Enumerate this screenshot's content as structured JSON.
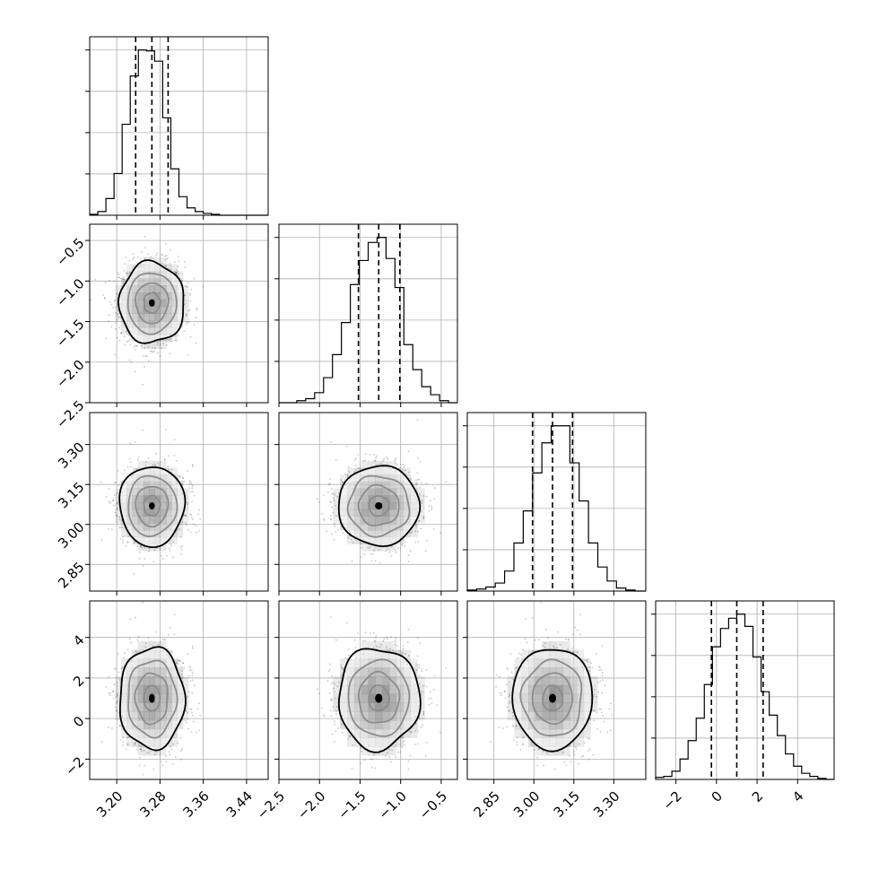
{
  "chart_data": {
    "type": "corner",
    "grid": true,
    "parameters": [
      {
        "index": 0,
        "range": [
          3.15,
          3.48
        ],
        "ticks": [
          {
            "value": 3.2,
            "label": "3.20"
          },
          {
            "value": 3.28,
            "label": "3.28"
          },
          {
            "value": 3.36,
            "label": "3.36"
          },
          {
            "value": 3.44,
            "label": "3.44"
          }
        ],
        "quantiles": [
          3.235,
          3.265,
          3.295
        ],
        "mean": 3.265,
        "sd": 0.03
      },
      {
        "index": 1,
        "range": [
          -2.5,
          -0.3
        ],
        "ticks": [
          {
            "value": -2.5,
            "label": "−2.5"
          },
          {
            "value": -2.0,
            "label": "−2.0"
          },
          {
            "value": -1.5,
            "label": "−1.5"
          },
          {
            "value": -1.0,
            "label": "−1.0"
          },
          {
            "value": -0.5,
            "label": "−0.5"
          }
        ],
        "quantiles": [
          -1.52,
          -1.27,
          -1.01
        ],
        "mean": -1.27,
        "sd": 0.25
      },
      {
        "index": 2,
        "range": [
          2.75,
          3.42
        ],
        "ticks": [
          {
            "value": 2.85,
            "label": "2.85"
          },
          {
            "value": 3.0,
            "label": "3.00"
          },
          {
            "value": 3.15,
            "label": "3.15"
          },
          {
            "value": 3.3,
            "label": "3.30"
          }
        ],
        "quantiles": [
          2.995,
          3.07,
          3.145
        ],
        "mean": 3.07,
        "sd": 0.075
      },
      {
        "index": 3,
        "range": [
          -3.0,
          5.8
        ],
        "ticks": [
          {
            "value": -2,
            "label": "−2"
          },
          {
            "value": 0,
            "label": "0"
          },
          {
            "value": 2,
            "label": "2"
          },
          {
            "value": 4,
            "label": "4"
          }
        ],
        "quantiles": [
          -0.25,
          1.0,
          2.3
        ],
        "mean": 1.0,
        "sd": 1.25
      }
    ],
    "histograms": [
      {
        "param": 0,
        "bin_edges": [
          3.15,
          3.165,
          3.18,
          3.195,
          3.21,
          3.225,
          3.24,
          3.255,
          3.27,
          3.285,
          3.3,
          3.315,
          3.33,
          3.345,
          3.36,
          3.375,
          3.39,
          3.405,
          3.42,
          3.435,
          3.45,
          3.465,
          3.48
        ],
        "counts": [
          1,
          4,
          18,
          45,
          98,
          150,
          178,
          177,
          166,
          105,
          50,
          20,
          8,
          4,
          2,
          1,
          0,
          0,
          0,
          0,
          0,
          0
        ]
      },
      {
        "param": 1,
        "bin_edges": [
          -2.5,
          -2.39,
          -2.28,
          -2.17,
          -2.06,
          -1.95,
          -1.84,
          -1.73,
          -1.62,
          -1.51,
          -1.4,
          -1.29,
          -1.18,
          -1.07,
          -0.96,
          -0.85,
          -0.74,
          -0.63,
          -0.52,
          -0.41,
          -0.3
        ],
        "counts": [
          0,
          0,
          2,
          4,
          10,
          25,
          48,
          80,
          118,
          142,
          160,
          165,
          144,
          115,
          58,
          33,
          16,
          8,
          2,
          0
        ]
      },
      {
        "param": 2,
        "bin_edges": [
          2.75,
          2.785,
          2.82,
          2.855,
          2.89,
          2.925,
          2.96,
          2.995,
          3.03,
          3.065,
          3.1,
          3.135,
          3.17,
          3.205,
          3.24,
          3.275,
          3.31,
          3.345,
          3.38,
          3.42
        ],
        "counts": [
          1,
          2,
          4,
          8,
          20,
          48,
          80,
          118,
          148,
          165,
          165,
          128,
          90,
          48,
          24,
          10,
          3,
          1,
          0
        ]
      },
      {
        "param": 3,
        "bin_edges": [
          -3.0,
          -2.6,
          -2.2,
          -1.8,
          -1.4,
          -1.0,
          -0.6,
          -0.2,
          0.2,
          0.6,
          1.0,
          1.4,
          1.8,
          2.2,
          2.6,
          3.0,
          3.4,
          3.8,
          4.2,
          4.6,
          5.0,
          5.4,
          5.8
        ],
        "counts": [
          2,
          3,
          8,
          20,
          38,
          60,
          93,
          130,
          148,
          158,
          162,
          150,
          120,
          86,
          63,
          43,
          25,
          13,
          6,
          3,
          1,
          0
        ]
      }
    ],
    "pairs": [
      {
        "x": 0,
        "y": 1,
        "correlation": 0.0
      },
      {
        "x": 0,
        "y": 2,
        "correlation": 0.0
      },
      {
        "x": 1,
        "y": 2,
        "correlation": 0.0
      },
      {
        "x": 0,
        "y": 3,
        "correlation": 0.0
      },
      {
        "x": 1,
        "y": 3,
        "correlation": 0.0
      },
      {
        "x": 2,
        "y": 3,
        "correlation": 0.0
      }
    ],
    "contour_levels_sigma": [
      0.5,
      1.0,
      1.5,
      2.0
    ],
    "colors": {
      "line": "#000000",
      "grid": "#b0b0b0",
      "scatter": "#000000",
      "density": "#000000"
    }
  }
}
